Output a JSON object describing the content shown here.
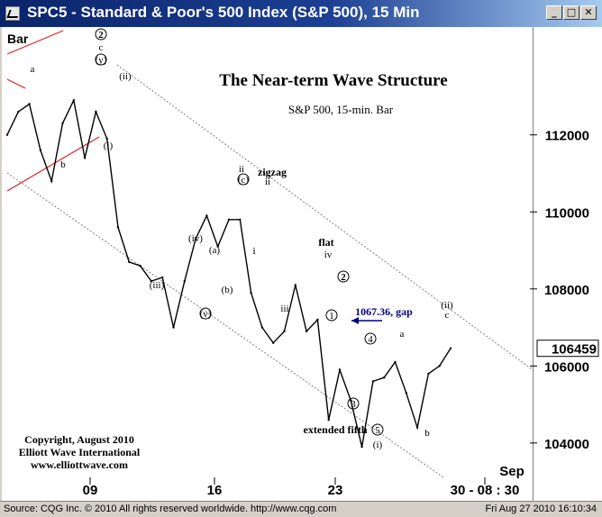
{
  "window": {
    "title": "SPC5 - Standard & Poor's 500 Index (S&P 500), 15 Min",
    "minimize_glyph": "_",
    "maximize_glyph": "□",
    "close_glyph": "✕"
  },
  "chart_data": {
    "type": "line",
    "title": "The Near-term Wave Structure",
    "subtitle": "S&P 500, 15-min. Bar",
    "bar_label": "Bar",
    "y_ticks": [
      104000,
      106000,
      108000,
      110000,
      112000
    ],
    "ylim": [
      102500,
      114800
    ],
    "last_price": "106459",
    "x_ticks": [
      "09",
      "16",
      "23",
      "30 - 08 : 30"
    ],
    "x_month_label": "Sep",
    "x": [
      "Aug 4",
      "Aug 5",
      "Aug 6",
      "Aug 6b",
      "Aug 9",
      "Aug 9b",
      "Aug 10",
      "Aug 10b",
      "Aug 11",
      "Aug 11b",
      "Aug 11c",
      "Aug 12",
      "Aug 12b",
      "Aug 13",
      "Aug 13b",
      "Aug 16",
      "Aug 16b",
      "Aug 17",
      "Aug 17b",
      "Aug 18",
      "Aug 18b",
      "Aug 18c",
      "Aug 19",
      "Aug 19b",
      "Aug 20",
      "Aug 20b",
      "Aug 23",
      "Aug 23b",
      "Aug 23c",
      "Aug 24",
      "Aug 24b",
      "Aug 24c",
      "Aug 25",
      "Aug 25b",
      "Aug 25c",
      "Aug 26",
      "Aug 26b",
      "Aug 26c",
      "Aug 27",
      "Aug 27b",
      "Aug 27c"
    ],
    "series": [
      {
        "values": [
          112000,
          112600,
          112800,
          111600,
          110800,
          112300,
          112900,
          111400,
          112600,
          111900,
          109600,
          108700,
          108600,
          108200,
          108300,
          107000,
          108200,
          109300,
          109900,
          109100,
          109800,
          109800,
          107900,
          107000,
          106600,
          106900,
          108100,
          106900,
          107200,
          104600,
          105900,
          105100,
          103900,
          105600,
          105700,
          106100,
          105300,
          104400,
          105800,
          106000,
          106459
        ]
      }
    ],
    "annotations": {
      "wave_labels": [
        "a",
        "b",
        "2",
        "c",
        "(y)",
        "(ii)",
        "(i)",
        "(iii)",
        "(iv)",
        "(a)",
        "(b)",
        "(v)",
        "i",
        "ii",
        "(c)",
        "zigzag",
        "ii",
        "i",
        "iii",
        "flat",
        "iv",
        "1",
        "2",
        "3",
        "4",
        "5",
        "a",
        "b",
        "c",
        "(ii)",
        "(i)",
        "extended fifth"
      ],
      "gap_label": "1067.36, gap",
      "copyright_lines": [
        "Copyright, August 2010",
        "Elliott Wave International",
        "www.elliottwave.com"
      ]
    },
    "colors": {
      "price_line": "#000000",
      "channel_dashed": "#808080",
      "red_trendline": "#e02020",
      "gap_arrow": "#000080",
      "last_price_box": "#ffffff"
    },
    "grid": false
  },
  "status": {
    "left": "Source: CQG Inc. © 2010 All rights reserved worldwide. http://www.cqg.com",
    "right": "Fri Aug 27 2010 16:10:34"
  }
}
